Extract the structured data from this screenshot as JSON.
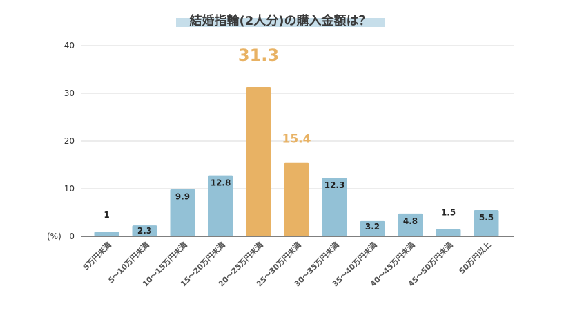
{
  "colors": {
    "bar_default": "#93C1D6",
    "bar_highlight": "#E8B264",
    "title_underline": "#C6DEEA",
    "grid": "#d9d9d9",
    "axis": "#333333",
    "highlight_text": "#E8B264"
  },
  "chart_data": {
    "type": "bar",
    "title": "結婚指輪(2人分)の購入金額は？",
    "ylabel": "(%)",
    "xlabel": "",
    "ylim": [
      0,
      40
    ],
    "yticks": [
      0,
      10,
      20,
      30,
      40
    ],
    "grid": true,
    "categories": [
      "5万円未満",
      "5～10万円未満",
      "10～15万円未満",
      "15～20万円未満",
      "20～25万円未満",
      "25～30万円未満",
      "30～35万円未満",
      "35～40万円未満",
      "40～45万円未満",
      "45～50万円未満",
      "50万円以上"
    ],
    "values": [
      1,
      2.3,
      9.9,
      12.8,
      31.3,
      15.4,
      12.3,
      3.2,
      4.8,
      1.5,
      5.5
    ],
    "value_labels": [
      "1",
      "2.3",
      "9.9",
      "12.8",
      "31.3",
      "15.4",
      "12.3",
      "3.2",
      "4.8",
      "1.5",
      "5.5"
    ],
    "highlighted": [
      4,
      5
    ]
  }
}
